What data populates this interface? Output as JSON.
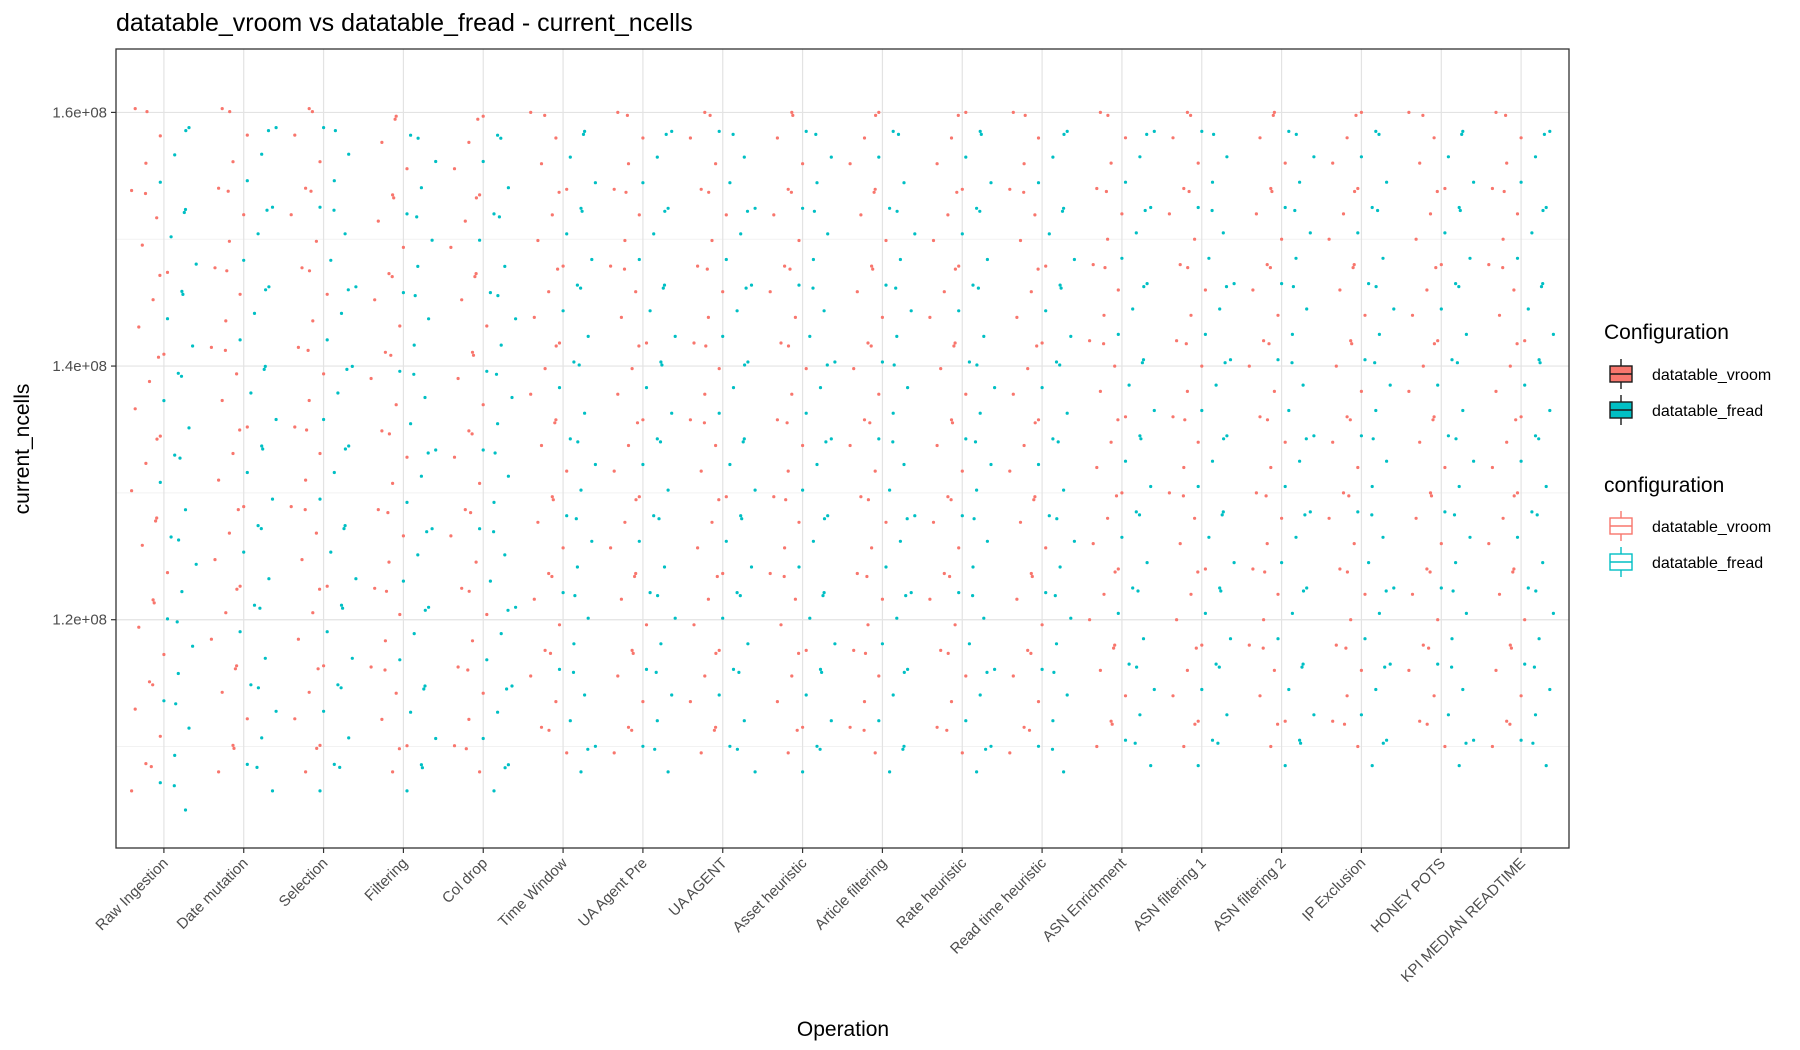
{
  "chart_data": {
    "type": "scatter",
    "title": "datatable_vroom vs datatable_fread - current_ncells",
    "xlabel": "Operation",
    "ylabel": "current_ncells",
    "ylim": [
      102000000,
      165000000
    ],
    "y_ticks": [
      120000000,
      140000000,
      160000000
    ],
    "y_tick_labels": [
      "1.2e+08",
      "1.4e+08",
      "1.6e+08"
    ],
    "grid": true,
    "legend_position": "right",
    "categories": [
      "Raw Ingestion",
      "Date mutation",
      "Selection",
      "Filtering",
      "Col drop",
      "Time Window",
      "UA Agent Pre",
      "UA AGENT",
      "Asset heuristic",
      "Article filtering",
      "Rate heuristic",
      "Read time heuristic",
      "ASN Enrichment",
      "ASN filtering 1",
      "ASN filtering 2",
      "IP Exclusion",
      "HONEY POTS",
      "KPI MEDIAN READTIME"
    ],
    "legend_fill": {
      "title": "Configuration",
      "entries": [
        "datatable_vroom",
        "datatable_fread"
      ]
    },
    "legend_color": {
      "title": "configuration",
      "entries": [
        "datatable_vroom",
        "datatable_fread"
      ]
    },
    "series": [
      {
        "name": "datatable_vroom",
        "color": "#F8766D",
        "min": [
          106500000,
          108000000,
          108000000,
          108000000,
          108000000,
          109500000,
          109500000,
          109500000,
          109500000,
          109500000,
          109500000,
          109500000,
          110000000,
          110000000,
          110000000,
          110000000,
          110000000,
          110000000
        ],
        "max": [
          160300000,
          160300000,
          160300000,
          159700000,
          159700000,
          160000000,
          160000000,
          160000000,
          160000000,
          160000000,
          160000000,
          160000000,
          160000000,
          160000000,
          160000000,
          160000000,
          160000000,
          160000000
        ]
      },
      {
        "name": "datatable_fread",
        "color": "#00BFC4",
        "min": [
          105000000,
          106500000,
          106500000,
          106500000,
          106500000,
          108000000,
          108000000,
          108000000,
          108000000,
          108000000,
          108000000,
          108000000,
          108500000,
          108500000,
          108500000,
          108500000,
          108500000,
          108500000
        ],
        "max": [
          158800000,
          158800000,
          158800000,
          158200000,
          158200000,
          158500000,
          158500000,
          158500000,
          158500000,
          158500000,
          158500000,
          158500000,
          158500000,
          158500000,
          158500000,
          158500000,
          158500000,
          158500000
        ]
      }
    ]
  }
}
